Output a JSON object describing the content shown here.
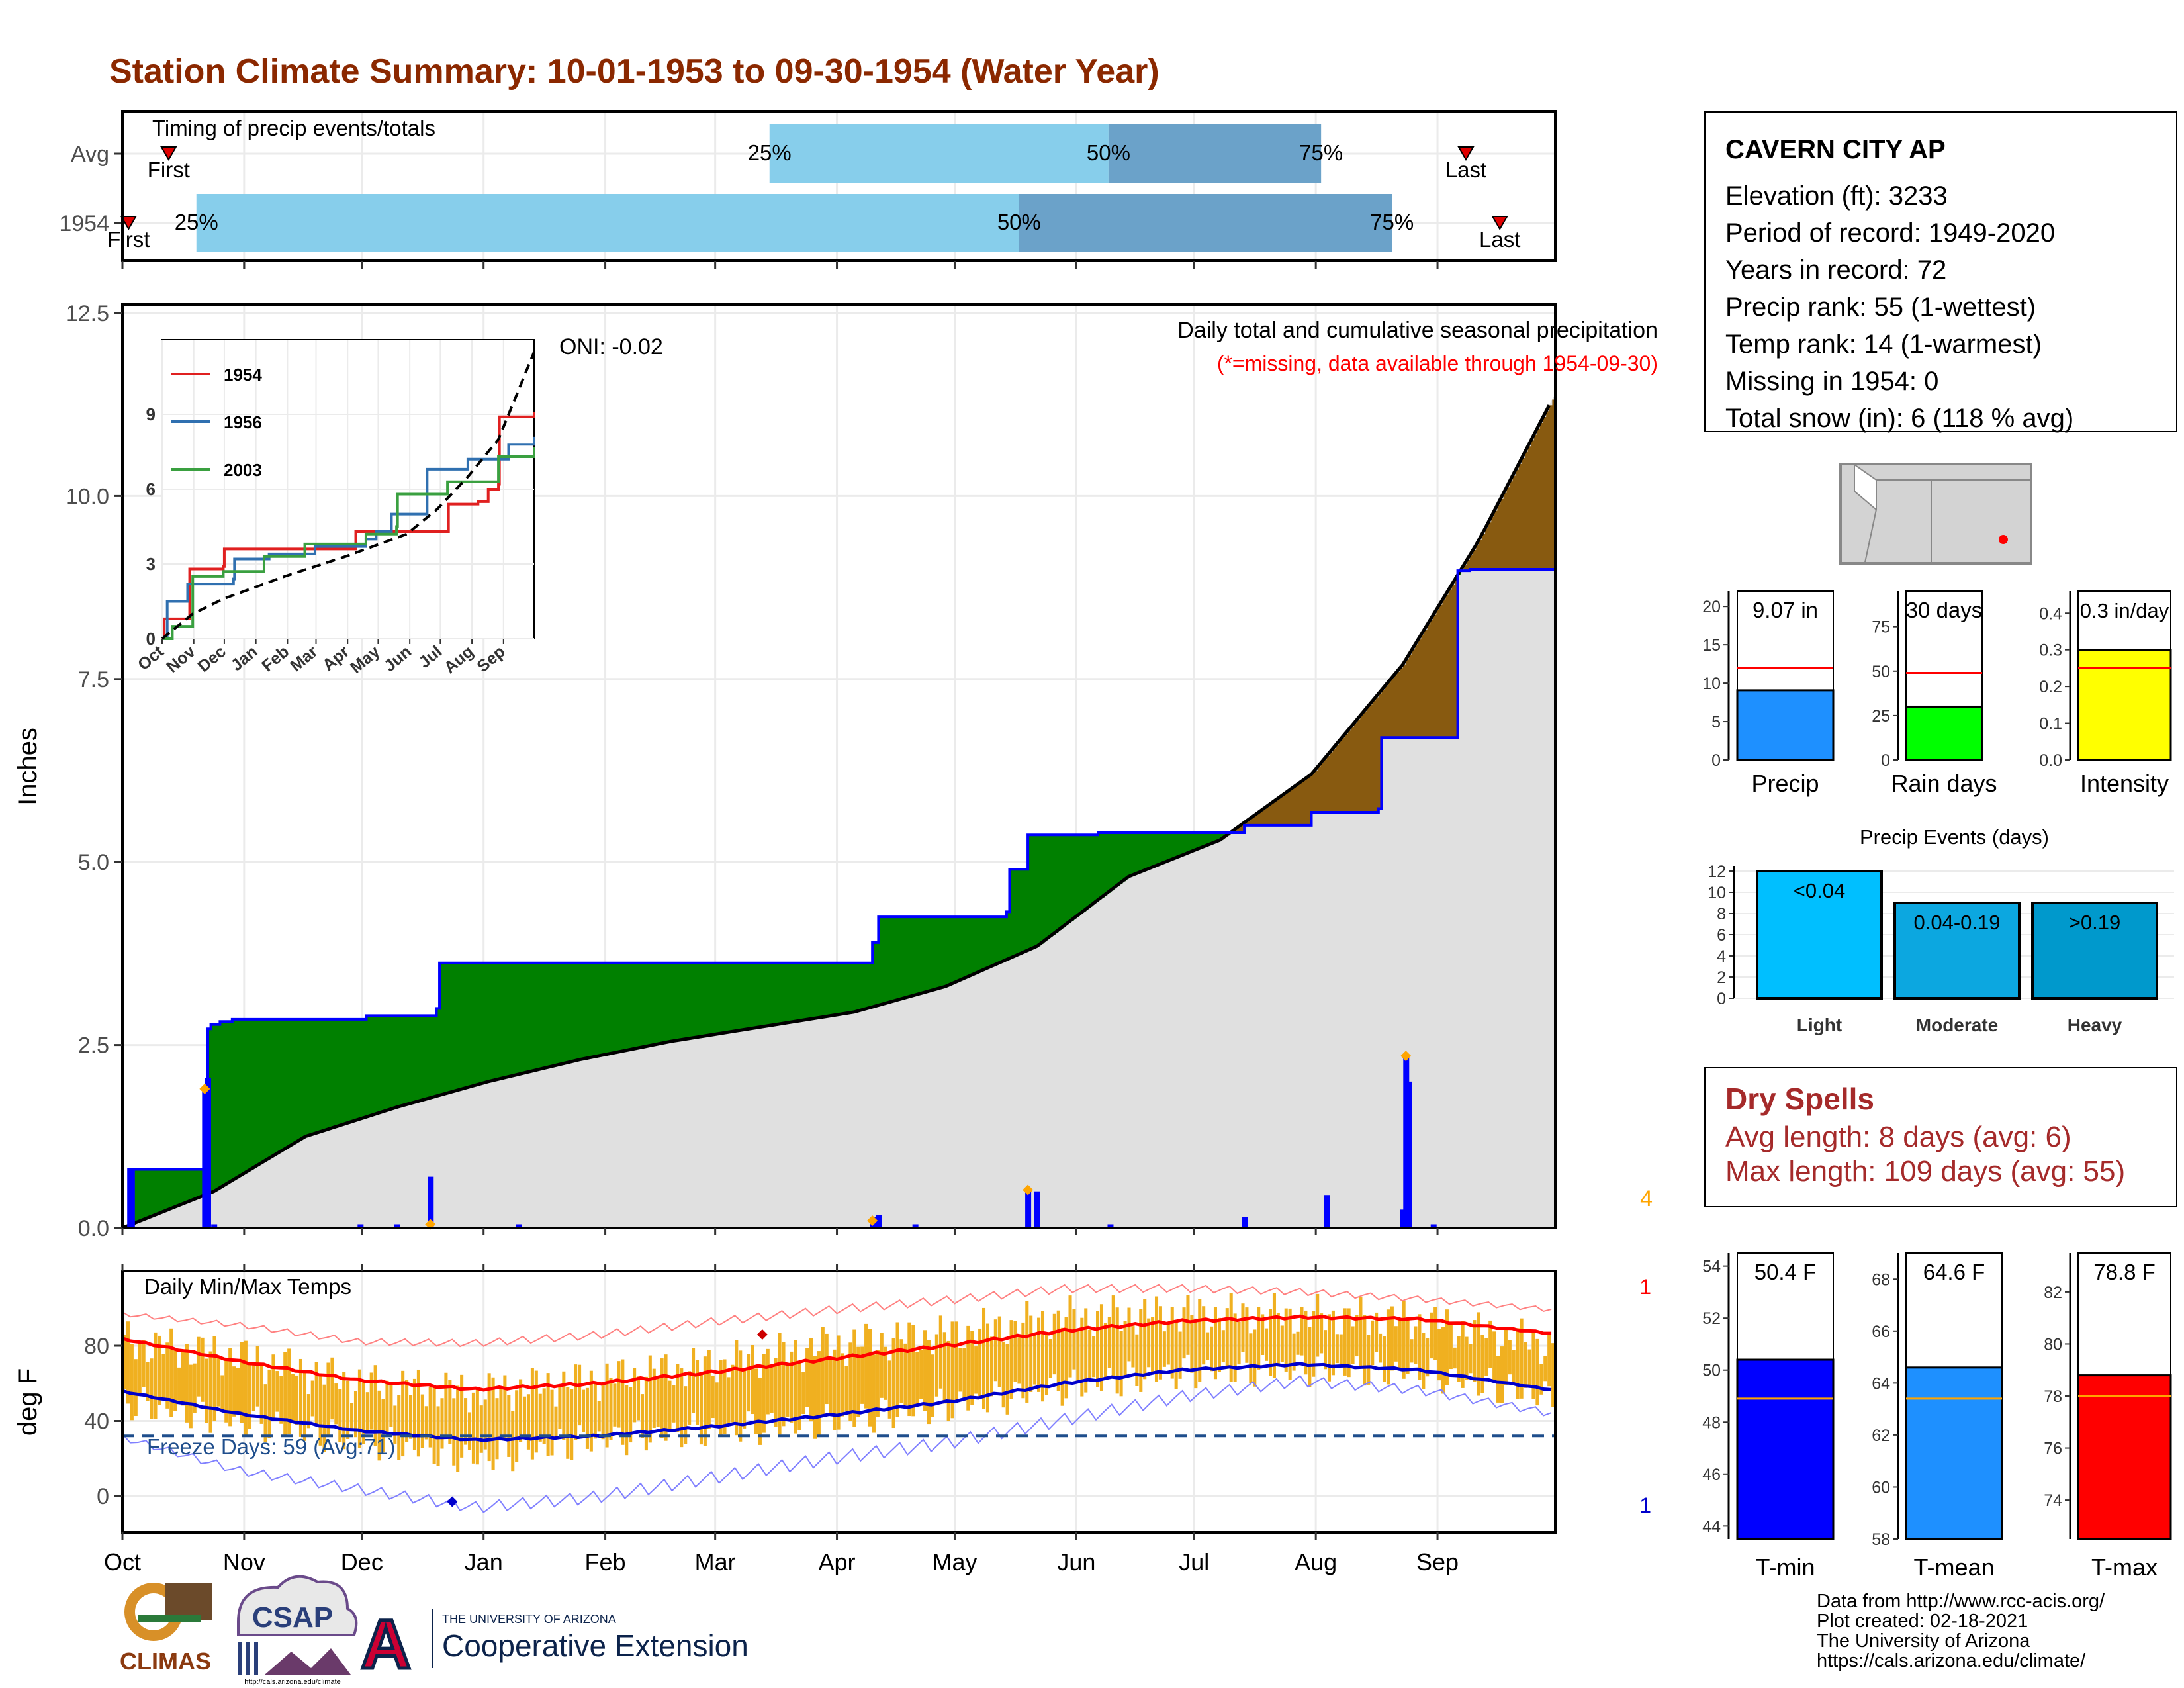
{
  "title": "Station Climate Summary: 10-01-1953 to 09-30-1954 (Water Year)",
  "months": [
    "Oct",
    "Nov",
    "Dec",
    "Jan",
    "Feb",
    "Mar",
    "Apr",
    "May",
    "Jun",
    "Jul",
    "Aug",
    "Sep"
  ],
  "timing": {
    "label": "Timing of precip events/totals",
    "rows": [
      {
        "name": "Avg",
        "first_day": 15,
        "p25": 210,
        "p50": 320,
        "p75": 389,
        "last_day": 436,
        "first_label": "First",
        "last_label": "Last",
        "p25_label": "25%",
        "p50_label": "50%",
        "p75_label": "75%"
      },
      {
        "name": "1954",
        "first_day": 2,
        "p25": 24,
        "p50": 291,
        "p75": 412,
        "last_day": 447,
        "first_label": "First",
        "last_label": "Last",
        "p25_label": "25%",
        "p50_label": "50%",
        "p75_label": "75%"
      }
    ],
    "colors": {
      "light": "#87ceeb",
      "dark": "#6ba2c9",
      "marker": "#e00000"
    }
  },
  "station": {
    "name": "CAVERN CITY AP",
    "lines": [
      "Elevation (ft): 3233",
      "Period of record: 1949-2020",
      "Years in record: 72",
      "Precip rank: 55 (1-wettest)",
      "Temp rank: 14 (1-warmest)",
      "Missing in 1954: 0",
      "Total snow (in): 6 (118 % avg)"
    ]
  },
  "chart_data": [
    {
      "id": "cumulative-precip",
      "type": "area",
      "title": "Daily total and cumulative seasonal precipitation",
      "subtitle": "(*=missing, data available through 1954-09-30)",
      "ylabel": "Inches",
      "ylim": [
        0,
        12.5
      ],
      "yticks": [
        0,
        2.5,
        5,
        7.5,
        10,
        12.5
      ],
      "ytick_labels": [
        "0.0",
        "2.5",
        "5.0",
        "7.5",
        "10.0",
        "12.5"
      ],
      "oni": "ONI: -0.02",
      "corner_label": "4",
      "observed_cumulative": [
        [
          0,
          0
        ],
        [
          2,
          0.8
        ],
        [
          26,
          0.8
        ],
        [
          27,
          1.05
        ],
        [
          28,
          2.72
        ],
        [
          29,
          2.78
        ],
        [
          32,
          2.82
        ],
        [
          36,
          2.85
        ],
        [
          80,
          2.9
        ],
        [
          103,
          3.0
        ],
        [
          104,
          3.62
        ],
        [
          245,
          3.62
        ],
        [
          246,
          3.9
        ],
        [
          248,
          4.25
        ],
        [
          290,
          4.32
        ],
        [
          291,
          4.9
        ],
        [
          297,
          5.37
        ],
        [
          320,
          5.4
        ],
        [
          350,
          5.4
        ],
        [
          368,
          5.5
        ],
        [
          390,
          5.68
        ],
        [
          412,
          5.73
        ],
        [
          413,
          6.7
        ],
        [
          438,
          8.98
        ],
        [
          442,
          9.0
        ],
        [
          470,
          9.08
        ]
      ],
      "avg_cumulative": [
        [
          0,
          0
        ],
        [
          30,
          0.5
        ],
        [
          60,
          1.25
        ],
        [
          90,
          1.65
        ],
        [
          120,
          2.0
        ],
        [
          150,
          2.3
        ],
        [
          180,
          2.55
        ],
        [
          210,
          2.75
        ],
        [
          240,
          2.95
        ],
        [
          270,
          3.3
        ],
        [
          300,
          3.85
        ],
        [
          330,
          4.8
        ],
        [
          360,
          5.3
        ],
        [
          390,
          6.2
        ],
        [
          420,
          7.7
        ],
        [
          445,
          9.4
        ],
        [
          470,
          11.4
        ]
      ],
      "daily_bars": [
        [
          3,
          0.8
        ],
        [
          27,
          1.9
        ],
        [
          28,
          2.05
        ],
        [
          30,
          0.05
        ],
        [
          78,
          0.05
        ],
        [
          90,
          0.05
        ],
        [
          101,
          0.7
        ],
        [
          130,
          0.05
        ],
        [
          246,
          0.15
        ],
        [
          248,
          0.18
        ],
        [
          260,
          0.05
        ],
        [
          297,
          0.52
        ],
        [
          300,
          0.5
        ],
        [
          324,
          0.05
        ],
        [
          368,
          0.15
        ],
        [
          395,
          0.45
        ],
        [
          420,
          0.25
        ],
        [
          421,
          2.35
        ],
        [
          422,
          2.0
        ],
        [
          430,
          0.05
        ]
      ],
      "markers": [
        [
          27,
          1.9
        ],
        [
          101,
          0.05
        ],
        [
          246,
          0.1
        ],
        [
          297,
          0.52
        ],
        [
          421,
          2.35
        ]
      ],
      "colors": {
        "avg_fill": "#e0e0e0",
        "above": "#008000",
        "below": "#885a10",
        "observed_line": "#0000ff",
        "avg_line": "#000000",
        "bars": "#0000ff",
        "marker": "#ffa500"
      },
      "inset": {
        "type": "line",
        "xticks": [
          "Oct",
          "Nov",
          "Dec",
          "Jan",
          "Feb",
          "Mar",
          "Apr",
          "May",
          "Jun",
          "Jul",
          "Aug",
          "Sep"
        ],
        "ylim": [
          0,
          12
        ],
        "yticks": [
          0,
          3,
          6,
          9
        ],
        "series": [
          {
            "name": "1954",
            "color": "#e02020",
            "points": [
              [
                0,
                0
              ],
              [
                2,
                0.8
              ],
              [
                27,
                2.8
              ],
              [
                60,
                2.9
              ],
              [
                61,
                3.6
              ],
              [
                180,
                3.6
              ],
              [
                190,
                4.3
              ],
              [
                280,
                4.3
              ],
              [
                281,
                5.4
              ],
              [
                310,
                5.5
              ],
              [
                320,
                6.0
              ],
              [
                330,
                6.2
              ],
              [
                331,
                8.9
              ],
              [
                365,
                9.1
              ]
            ]
          },
          {
            "name": "1956",
            "color": "#3070b0",
            "points": [
              [
                0,
                0
              ],
              [
                5,
                1.5
              ],
              [
                25,
                2.2
              ],
              [
                70,
                2.4
              ],
              [
                71,
                3.2
              ],
              [
                105,
                3.4
              ],
              [
                150,
                3.7
              ],
              [
                200,
                4.0
              ],
              [
                210,
                4.3
              ],
              [
                225,
                5.0
              ],
              [
                260,
                6.8
              ],
              [
                300,
                7.2
              ],
              [
                340,
                7.8
              ],
              [
                365,
                8.1
              ]
            ]
          },
          {
            "name": "2003",
            "color": "#3aa040",
            "points": [
              [
                0,
                0
              ],
              [
                10,
                0.5
              ],
              [
                30,
                2.5
              ],
              [
                60,
                2.7
              ],
              [
                100,
                3.3
              ],
              [
                140,
                3.8
              ],
              [
                200,
                4.2
              ],
              [
                230,
                4.5
              ],
              [
                231,
                5.8
              ],
              [
                280,
                6.3
              ],
              [
                330,
                7.3
              ],
              [
                365,
                7.7
              ]
            ]
          },
          {
            "name": "avg",
            "color": "#000000",
            "dash": true,
            "points": [
              [
                0,
                0
              ],
              [
                30,
                1.0
              ],
              [
                60,
                1.6
              ],
              [
                120,
                2.5
              ],
              [
                180,
                3.3
              ],
              [
                240,
                4.2
              ],
              [
                270,
                5.2
              ],
              [
                300,
                6.5
              ],
              [
                330,
                8.0
              ],
              [
                365,
                11.5
              ]
            ]
          }
        ]
      }
    },
    {
      "id": "precip-summary",
      "type": "bar",
      "panels": [
        {
          "name": "Precip",
          "label": "9.07 in",
          "value": 9.07,
          "avg": 12.0,
          "ylim": [
            0,
            22
          ],
          "yticks": [
            0,
            5,
            10,
            15,
            20
          ],
          "color": "#1e90ff"
        },
        {
          "name": "Rain days",
          "label": "30 days",
          "value": 30,
          "avg": 49,
          "ylim": [
            0,
            95
          ],
          "yticks": [
            0,
            25,
            50,
            75
          ],
          "color": "#00ff00"
        },
        {
          "name": "Intensity",
          "label": "0.3 in/day",
          "value": 0.3,
          "avg": 0.25,
          "ylim": [
            0,
            0.46
          ],
          "yticks": [
            0,
            0.1,
            0.2,
            0.3,
            0.4
          ],
          "ytick_labels": [
            "0.0",
            "0.1",
            "0.2",
            "0.3",
            "0.4"
          ],
          "color": "#ffff00"
        }
      ]
    },
    {
      "id": "precip-events",
      "type": "bar",
      "title": "Precip Events (days)",
      "categories": [
        "Light",
        "Moderate",
        "Heavy"
      ],
      "labels": [
        "<0.04",
        "0.04-0.19",
        ">0.19"
      ],
      "values": [
        12,
        9,
        9
      ],
      "ylim": [
        0,
        12.5
      ],
      "yticks": [
        0,
        2,
        4,
        6,
        8,
        10,
        12
      ],
      "colors": [
        "#00bfff",
        "#0ca7e0",
        "#0099cc"
      ]
    },
    {
      "id": "daily-temps",
      "type": "line",
      "title": "Daily Min/Max Temps",
      "ylabel": "deg F",
      "ylim": [
        -20,
        110
      ],
      "yticks": [
        0,
        40,
        80
      ],
      "freeze_line": 32,
      "freeze_label": "Freeze Days: 59 (Avg:71)",
      "max_label": "1",
      "min_label": "1",
      "avg_max": [
        [
          0,
          84
        ],
        [
          30,
          72
        ],
        [
          60,
          62
        ],
        [
          90,
          57
        ],
        [
          120,
          60
        ],
        [
          150,
          66
        ],
        [
          180,
          73
        ],
        [
          210,
          80
        ],
        [
          240,
          88
        ],
        [
          270,
          93
        ],
        [
          300,
          95
        ],
        [
          330,
          94
        ],
        [
          365,
          86
        ]
      ],
      "avg_min": [
        [
          0,
          56
        ],
        [
          30,
          44
        ],
        [
          60,
          35
        ],
        [
          90,
          30
        ],
        [
          120,
          32
        ],
        [
          150,
          37
        ],
        [
          180,
          43
        ],
        [
          210,
          50
        ],
        [
          240,
          60
        ],
        [
          270,
          67
        ],
        [
          300,
          70
        ],
        [
          330,
          67
        ],
        [
          365,
          56
        ]
      ],
      "record_max": [
        [
          0,
          98
        ],
        [
          30,
          92
        ],
        [
          60,
          83
        ],
        [
          90,
          82
        ],
        [
          120,
          86
        ],
        [
          150,
          93
        ],
        [
          180,
          99
        ],
        [
          210,
          104
        ],
        [
          240,
          110
        ],
        [
          270,
          110
        ],
        [
          300,
          108
        ],
        [
          330,
          104
        ],
        [
          365,
          98
        ]
      ],
      "record_min": [
        [
          0,
          33
        ],
        [
          30,
          15
        ],
        [
          60,
          5
        ],
        [
          90,
          -5
        ],
        [
          120,
          0
        ],
        [
          150,
          10
        ],
        [
          180,
          20
        ],
        [
          210,
          28
        ],
        [
          240,
          40
        ],
        [
          270,
          52
        ],
        [
          300,
          60
        ],
        [
          330,
          55
        ],
        [
          365,
          42
        ]
      ],
      "obs_high": [
        [
          0,
          82
        ],
        [
          30,
          74
        ],
        [
          60,
          60
        ],
        [
          90,
          55
        ],
        [
          120,
          62
        ],
        [
          150,
          70
        ],
        [
          180,
          80
        ],
        [
          210,
          86
        ],
        [
          240,
          95
        ],
        [
          270,
          97
        ],
        [
          300,
          96
        ],
        [
          330,
          93
        ],
        [
          365,
          80
        ]
      ],
      "obs_low": [
        [
          0,
          50
        ],
        [
          30,
          40
        ],
        [
          60,
          30
        ],
        [
          90,
          20
        ],
        [
          120,
          30
        ],
        [
          150,
          35
        ],
        [
          180,
          40
        ],
        [
          210,
          48
        ],
        [
          240,
          58
        ],
        [
          270,
          66
        ],
        [
          300,
          68
        ],
        [
          330,
          66
        ],
        [
          365,
          52
        ]
      ],
      "colors": {
        "range": "#f0b020",
        "avg_max": "#ff0000",
        "avg_min": "#0000cc",
        "rec_max": "#ff8080",
        "rec_min": "#8080ff",
        "freeze": "#1f4e8c"
      }
    },
    {
      "id": "temp-summary",
      "type": "bar",
      "panels": [
        {
          "name": "T-min",
          "label": "50.4 F",
          "value": 50.4,
          "avg": 48.9,
          "ylim": [
            43.5,
            54.5
          ],
          "yticks": [
            44,
            46,
            48,
            50,
            52,
            54
          ],
          "color": "#0000ff"
        },
        {
          "name": "T-mean",
          "label": "64.6 F",
          "value": 64.6,
          "avg": 63.4,
          "ylim": [
            58,
            69
          ],
          "yticks": [
            58,
            60,
            62,
            64,
            66,
            68
          ],
          "color": "#1e90ff"
        },
        {
          "name": "T-max",
          "label": "78.8 F",
          "value": 78.8,
          "avg": 78.0,
          "ylim": [
            72.5,
            83.5
          ],
          "yticks": [
            74,
            76,
            78,
            80,
            82
          ],
          "color": "#ff0000"
        }
      ]
    }
  ],
  "dry_spells": {
    "title": "Dry Spells",
    "avg_line": "Avg length: 8 days (avg: 6)",
    "max_line": "Max length: 109 days (avg: 55)"
  },
  "logos": {
    "climas": "CLIMAS",
    "csap": "CSAP",
    "csap_url": "http://cals.arizona.edu/climate",
    "ua_small": "THE UNIVERSITY OF ARIZONA",
    "ua_big": "Cooperative Extension",
    "ua_letter": "A"
  },
  "credits": [
    "Data from http://www.rcc-acis.org/",
    "Plot created: 02-18-2021",
    "The University of Arizona",
    "https://cals.arizona.edu/climate/"
  ]
}
